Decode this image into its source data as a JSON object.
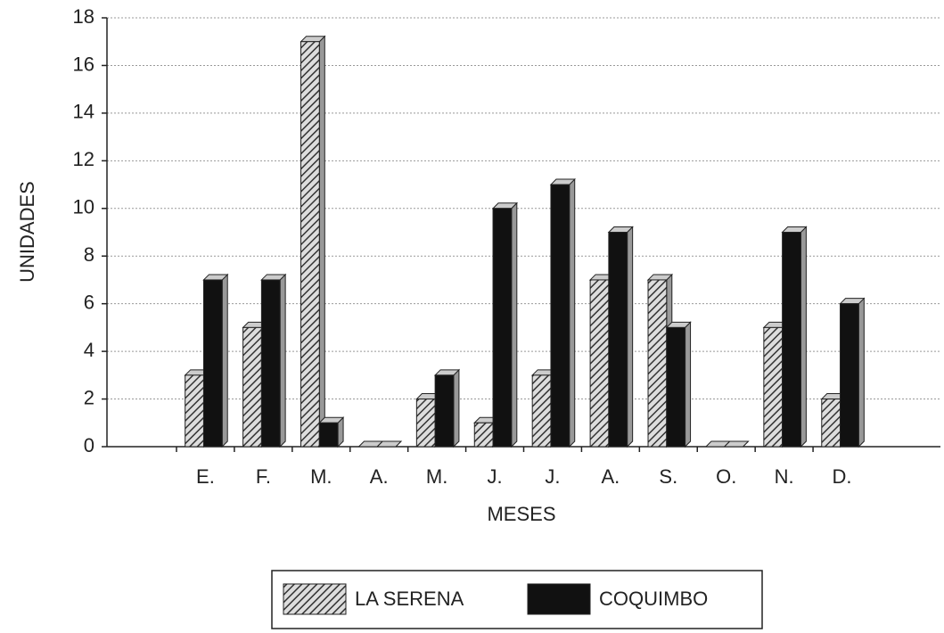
{
  "chart_data": {
    "type": "bar",
    "xlabel": "MESES",
    "ylabel": "UNIDADES",
    "categories": [
      "E.",
      "F.",
      "M.",
      "A.",
      "M.",
      "J.",
      "J.",
      "A.",
      "S.",
      "O.",
      "N.",
      "D."
    ],
    "series": [
      {
        "name": "LA SERENA",
        "color": "#444444",
        "pattern": "diagonal-hatch",
        "values": [
          3,
          5,
          17,
          0,
          2,
          1,
          3,
          7,
          7,
          0,
          5,
          2
        ]
      },
      {
        "name": "COQUIMBO",
        "color": "#111111",
        "values": [
          7,
          7,
          1,
          0,
          3,
          10,
          11,
          9,
          5,
          0,
          9,
          6
        ]
      }
    ],
    "ylim": [
      0,
      18
    ],
    "yticks": [
      0,
      2,
      4,
      6,
      8,
      10,
      12,
      14,
      16,
      18
    ],
    "grid": true,
    "legend": "bottom"
  }
}
